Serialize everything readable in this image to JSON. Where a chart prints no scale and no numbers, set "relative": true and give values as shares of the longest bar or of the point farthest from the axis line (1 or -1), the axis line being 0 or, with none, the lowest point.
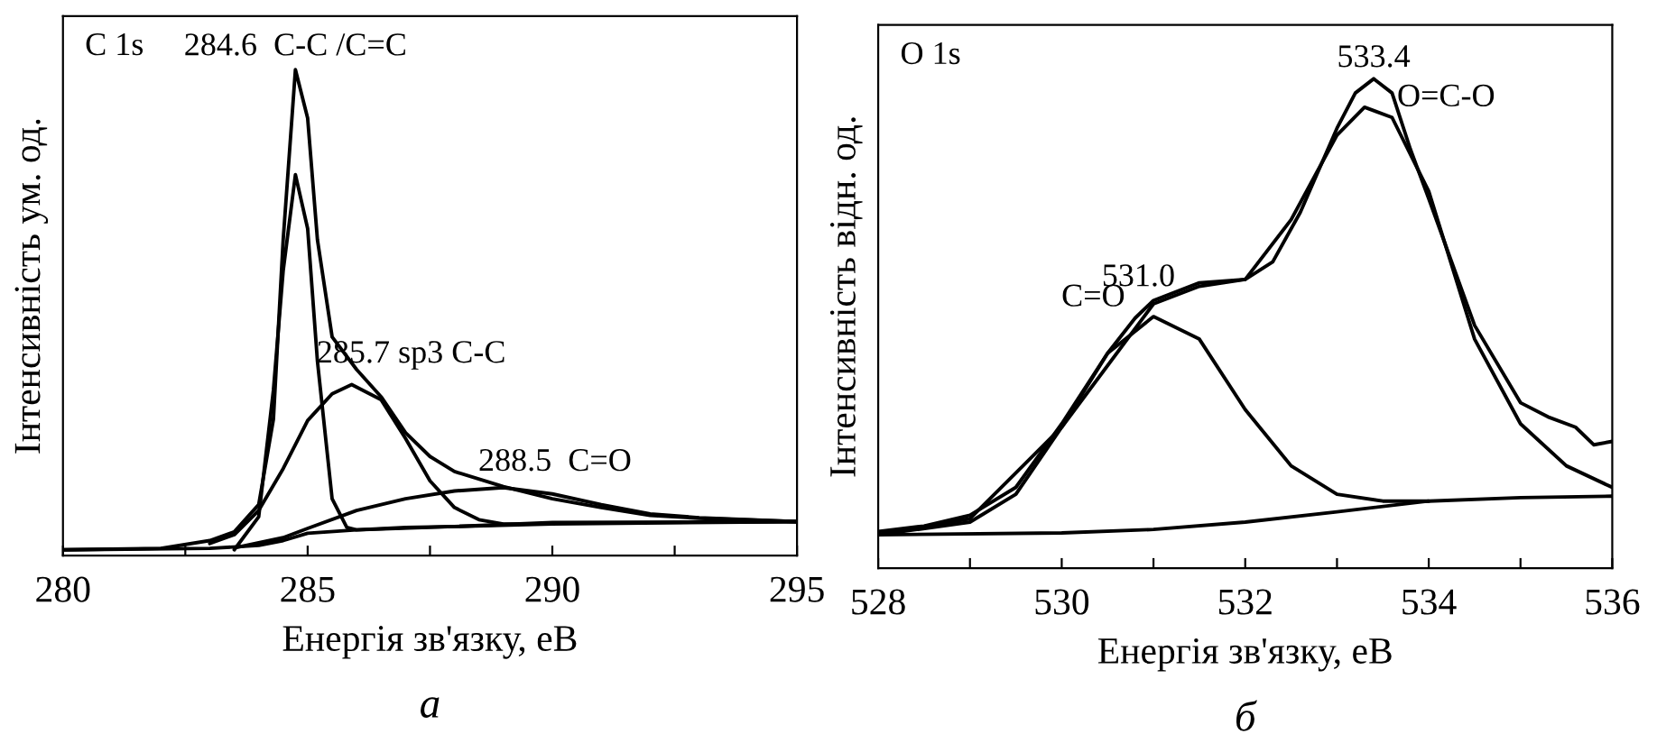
{
  "chart_data": [
    {
      "type": "line",
      "relative": true,
      "xlabel": "Енергія зв'язку, еВ",
      "ylabel": "Інтенсивність ум. од.",
      "xlim": [
        280,
        295
      ],
      "xticks": [
        280,
        {
          "value": 282.5,
          "label": null
        },
        285,
        {
          "value": 287.5,
          "label": null
        },
        290,
        {
          "value": 292.5,
          "label": null
        },
        295
      ],
      "annotations": [
        "C 1s",
        "а",
        {
          "text": "284.6  C-C /C=C",
          "x": 284.75,
          "y": 1.0
        },
        {
          "text": "285.7 sp3 C-C",
          "x": 285.9,
          "y": 0.352
        },
        {
          "text": "288.5  C=O",
          "x": 289,
          "y": 0.14
        }
      ],
      "series": [
        {
          "color": "#000000",
          "x": [
            280,
            282,
            283,
            283.5,
            284,
            284.3,
            284.5,
            284.75,
            285,
            285.2,
            285.5,
            286,
            286.5,
            287,
            287.5,
            288,
            289,
            290,
            291,
            292,
            293,
            295
          ],
          "values": [
            0.012,
            0.015,
            0.031,
            0.049,
            0.105,
            0.28,
            0.65,
            1.0,
            0.9,
            0.65,
            0.45,
            0.383,
            0.327,
            0.253,
            0.204,
            0.173,
            0.142,
            0.117,
            0.099,
            0.083,
            0.077,
            0.07
          ]
        },
        {
          "color": "#000000",
          "x": [
            283.5,
            284,
            284.3,
            284.5,
            284.75,
            285,
            285.2,
            285.5,
            285.8,
            286,
            287,
            288,
            290,
            295
          ],
          "values": [
            0.012,
            0.08,
            0.34,
            0.586,
            0.784,
            0.673,
            0.4,
            0.117,
            0.058,
            0.053,
            0.058,
            0.06,
            0.068,
            0.07
          ]
        },
        {
          "color": "#000000",
          "x": [
            283,
            283.5,
            284,
            284.5,
            285,
            285.5,
            285.9,
            286.5,
            287,
            287.5,
            288,
            288.5,
            289,
            290
          ],
          "values": [
            0.025,
            0.043,
            0.093,
            0.179,
            0.278,
            0.333,
            0.352,
            0.321,
            0.241,
            0.154,
            0.099,
            0.074,
            0.065,
            0.065
          ]
        },
        {
          "color": "#000000",
          "x": [
            283.5,
            284.5,
            285,
            286,
            287,
            288,
            289,
            290,
            291,
            292,
            293,
            295
          ],
          "values": [
            0.016,
            0.037,
            0.056,
            0.093,
            0.117,
            0.133,
            0.14,
            0.127,
            0.105,
            0.086,
            0.078,
            0.07
          ]
        },
        {
          "color": "#000000",
          "x": [
            280,
            283,
            284,
            284.5,
            285,
            286,
            288,
            290,
            295
          ],
          "values": [
            0.012,
            0.015,
            0.021,
            0.031,
            0.046,
            0.053,
            0.06,
            0.065,
            0.07
          ]
        }
      ]
    },
    {
      "type": "line",
      "relative": true,
      "xlabel": "Енергія зв'язку, еВ",
      "ylabel": "Інтенсивність відн. од.",
      "xlim": [
        528,
        536
      ],
      "xticks": [
        528,
        {
          "value": 529,
          "label": null
        },
        530,
        {
          "value": 531,
          "label": null
        },
        532,
        {
          "value": 533,
          "label": null
        },
        534,
        {
          "value": 535,
          "label": null
        },
        536
      ],
      "annotations": [
        "O 1s",
        "б",
        {
          "text": "531.0",
          "x": 531,
          "y": 0.547
        },
        {
          "text": "C=O",
          "x": 530.8,
          "y": 0.511
        },
        {
          "text": "533.4",
          "x": 533.4,
          "y": 1.0
        },
        {
          "text": "O=C-O",
          "x": 533.6,
          "y": 0.971
        }
      ],
      "series": [
        {
          "color": "#000000",
          "x": [
            528,
            528.5,
            529,
            529.5,
            530,
            530.5,
            530.8,
            531,
            531.5,
            532,
            532.3,
            532.6,
            533,
            533.2,
            533.4,
            533.6,
            533.8,
            534,
            534.5,
            535,
            535.3,
            535.6,
            535.8,
            536
          ],
          "values": [
            0.075,
            0.086,
            0.108,
            0.165,
            0.295,
            0.439,
            0.511,
            0.547,
            0.583,
            0.59,
            0.626,
            0.727,
            0.899,
            0.971,
            1.0,
            0.971,
            0.856,
            0.755,
            0.496,
            0.338,
            0.309,
            0.288,
            0.252,
            0.259
          ]
        },
        {
          "color": "#000000",
          "x": [
            528,
            529,
            530,
            531,
            531.5,
            532,
            532.5,
            533,
            533.3,
            533.6,
            534,
            534.5,
            535,
            535.5,
            536
          ],
          "values": [
            0.069,
            0.101,
            0.288,
            0.54,
            0.576,
            0.59,
            0.712,
            0.885,
            0.942,
            0.921,
            0.77,
            0.468,
            0.295,
            0.209,
            0.165
          ]
        },
        {
          "color": "#000000",
          "x": [
            528,
            529,
            529.5,
            530,
            530.5,
            531,
            531.5,
            532,
            532.5,
            533,
            533.5,
            534
          ],
          "values": [
            0.068,
            0.094,
            0.151,
            0.288,
            0.439,
            0.514,
            0.468,
            0.324,
            0.209,
            0.151,
            0.137,
            0.137
          ]
        },
        {
          "color": "#000000",
          "x": [
            528,
            530,
            531,
            532,
            533,
            534,
            535,
            536
          ],
          "values": [
            0.068,
            0.072,
            0.079,
            0.094,
            0.115,
            0.137,
            0.144,
            0.147
          ]
        }
      ]
    }
  ]
}
